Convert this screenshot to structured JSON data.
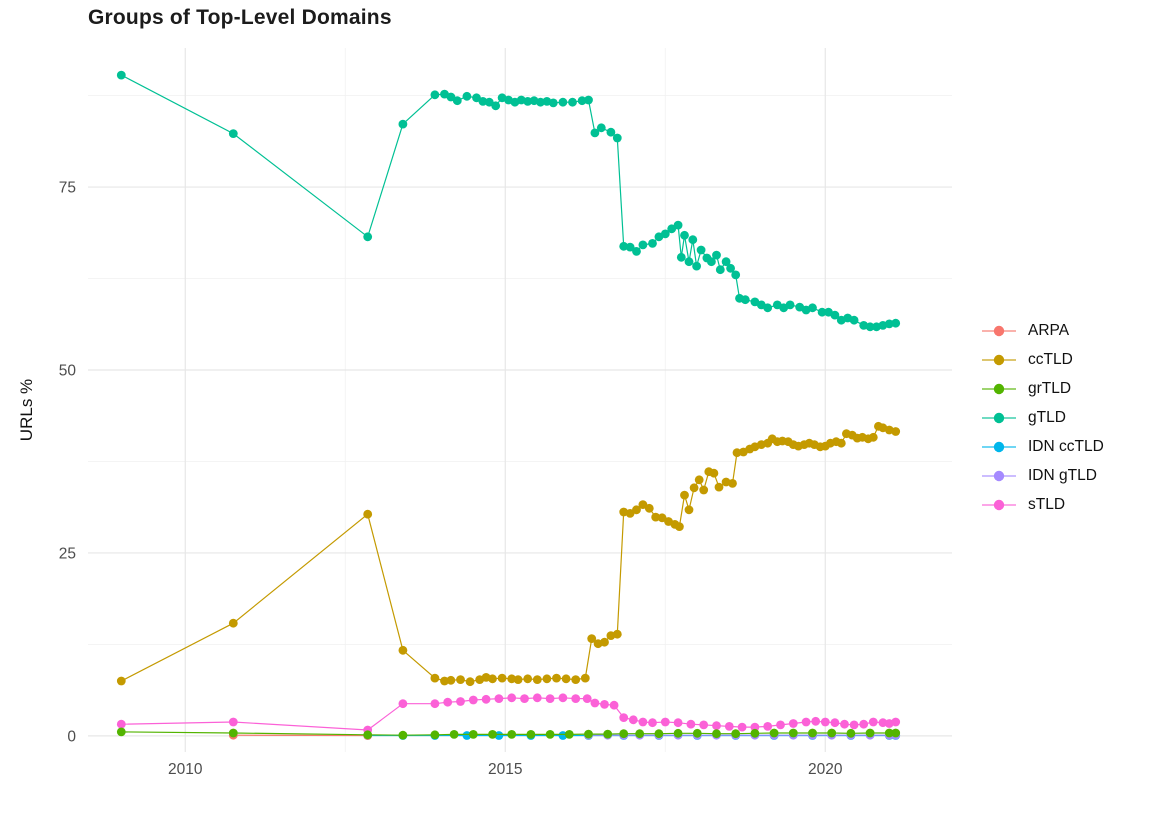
{
  "title": "Groups of Top-Level Domains",
  "chart_data": {
    "type": "line",
    "title": "Groups of Top-Level Domains",
    "xlabel": "",
    "ylabel": "URLs %",
    "x_ticks": [
      2010,
      2015,
      2020
    ],
    "x_tick_labels": [
      "2010",
      "2015",
      "2020"
    ],
    "x_minor": [
      2012.5,
      2017.5
    ],
    "y_ticks": [
      0,
      25,
      50,
      75
    ],
    "y_tick_labels": [
      "0",
      "25",
      "50",
      "75"
    ],
    "y_minor": [
      12.5,
      37.5,
      62.5,
      87.5
    ],
    "xlim": [
      2008.48,
      2021.98
    ],
    "ylim": [
      -2.2,
      94.0
    ],
    "grid": true,
    "legend_position": "right",
    "draw_order": [
      "IDN ccTLD",
      "IDN gTLD",
      "ARPA",
      "sTLD",
      "ccTLD",
      "gTLD",
      "grTLD"
    ],
    "series": [
      {
        "name": "ARPA",
        "color": "#F8766D",
        "points": [
          [
            2010.75,
            0.1
          ],
          [
            2012.85,
            0.05
          ]
        ]
      },
      {
        "name": "ccTLD",
        "color": "#C49A00",
        "points": [
          [
            2009.0,
            7.5
          ],
          [
            2010.75,
            15.4
          ],
          [
            2012.85,
            30.3
          ],
          [
            2013.4,
            11.7
          ],
          [
            2013.9,
            7.9
          ],
          [
            2014.05,
            7.5
          ],
          [
            2014.15,
            7.6
          ],
          [
            2014.3,
            7.7
          ],
          [
            2014.45,
            7.4
          ],
          [
            2014.6,
            7.7
          ],
          [
            2014.7,
            8.0
          ],
          [
            2014.8,
            7.8
          ],
          [
            2014.95,
            7.9
          ],
          [
            2015.1,
            7.8
          ],
          [
            2015.2,
            7.7
          ],
          [
            2015.35,
            7.8
          ],
          [
            2015.5,
            7.7
          ],
          [
            2015.65,
            7.8
          ],
          [
            2015.8,
            7.9
          ],
          [
            2015.95,
            7.8
          ],
          [
            2016.1,
            7.7
          ],
          [
            2016.25,
            7.9
          ],
          [
            2016.35,
            13.3
          ],
          [
            2016.45,
            12.6
          ],
          [
            2016.55,
            12.8
          ],
          [
            2016.65,
            13.7
          ],
          [
            2016.75,
            13.9
          ],
          [
            2016.85,
            30.6
          ],
          [
            2016.95,
            30.4
          ],
          [
            2017.05,
            30.9
          ],
          [
            2017.15,
            31.6
          ],
          [
            2017.25,
            31.1
          ],
          [
            2017.35,
            29.9
          ],
          [
            2017.45,
            29.8
          ],
          [
            2017.55,
            29.3
          ],
          [
            2017.65,
            28.9
          ],
          [
            2017.72,
            28.6
          ],
          [
            2017.8,
            32.9
          ],
          [
            2017.87,
            30.9
          ],
          [
            2017.95,
            33.9
          ],
          [
            2018.03,
            35.0
          ],
          [
            2018.1,
            33.6
          ],
          [
            2018.18,
            36.1
          ],
          [
            2018.26,
            35.9
          ],
          [
            2018.34,
            34.0
          ],
          [
            2018.45,
            34.7
          ],
          [
            2018.55,
            34.5
          ],
          [
            2018.62,
            38.7
          ],
          [
            2018.72,
            38.8
          ],
          [
            2018.82,
            39.2
          ],
          [
            2018.9,
            39.5
          ],
          [
            2019.0,
            39.8
          ],
          [
            2019.1,
            40.0
          ],
          [
            2019.17,
            40.6
          ],
          [
            2019.25,
            40.2
          ],
          [
            2019.33,
            40.3
          ],
          [
            2019.42,
            40.2
          ],
          [
            2019.5,
            39.8
          ],
          [
            2019.58,
            39.6
          ],
          [
            2019.67,
            39.8
          ],
          [
            2019.75,
            40.0
          ],
          [
            2019.83,
            39.8
          ],
          [
            2019.92,
            39.5
          ],
          [
            2020.0,
            39.6
          ],
          [
            2020.08,
            40.0
          ],
          [
            2020.17,
            40.2
          ],
          [
            2020.25,
            40.0
          ],
          [
            2020.33,
            41.3
          ],
          [
            2020.42,
            41.1
          ],
          [
            2020.5,
            40.7
          ],
          [
            2020.58,
            40.8
          ],
          [
            2020.67,
            40.6
          ],
          [
            2020.75,
            40.8
          ],
          [
            2020.83,
            42.3
          ],
          [
            2020.9,
            42.1
          ],
          [
            2021.0,
            41.8
          ],
          [
            2021.1,
            41.6
          ]
        ]
      },
      {
        "name": "grTLD",
        "color": "#53B400",
        "points": [
          [
            2009.0,
            0.55
          ],
          [
            2010.75,
            0.4
          ],
          [
            2012.85,
            0.15
          ],
          [
            2013.4,
            0.1
          ],
          [
            2013.9,
            0.15
          ],
          [
            2014.2,
            0.2
          ],
          [
            2014.5,
            0.2
          ],
          [
            2014.8,
            0.2
          ],
          [
            2015.1,
            0.2
          ],
          [
            2015.4,
            0.2
          ],
          [
            2015.7,
            0.2
          ],
          [
            2016.0,
            0.2
          ],
          [
            2016.3,
            0.25
          ],
          [
            2016.6,
            0.25
          ],
          [
            2016.85,
            0.3
          ],
          [
            2017.1,
            0.3
          ],
          [
            2017.4,
            0.3
          ],
          [
            2017.7,
            0.35
          ],
          [
            2018.0,
            0.35
          ],
          [
            2018.3,
            0.3
          ],
          [
            2018.6,
            0.3
          ],
          [
            2018.9,
            0.35
          ],
          [
            2019.2,
            0.4
          ],
          [
            2019.5,
            0.4
          ],
          [
            2019.8,
            0.4
          ],
          [
            2020.1,
            0.4
          ],
          [
            2020.4,
            0.35
          ],
          [
            2020.7,
            0.4
          ],
          [
            2021.0,
            0.4
          ],
          [
            2021.1,
            0.4
          ]
        ]
      },
      {
        "name": "gTLD",
        "color": "#00C094",
        "points": [
          [
            2009.0,
            90.3
          ],
          [
            2010.75,
            82.3
          ],
          [
            2012.85,
            68.2
          ],
          [
            2013.4,
            83.6
          ],
          [
            2013.9,
            87.6
          ],
          [
            2014.05,
            87.7
          ],
          [
            2014.15,
            87.3
          ],
          [
            2014.25,
            86.8
          ],
          [
            2014.4,
            87.4
          ],
          [
            2014.55,
            87.2
          ],
          [
            2014.65,
            86.7
          ],
          [
            2014.75,
            86.6
          ],
          [
            2014.85,
            86.1
          ],
          [
            2014.95,
            87.2
          ],
          [
            2015.05,
            86.9
          ],
          [
            2015.15,
            86.6
          ],
          [
            2015.25,
            86.9
          ],
          [
            2015.35,
            86.7
          ],
          [
            2015.45,
            86.8
          ],
          [
            2015.55,
            86.6
          ],
          [
            2015.65,
            86.7
          ],
          [
            2015.75,
            86.5
          ],
          [
            2015.9,
            86.6
          ],
          [
            2016.05,
            86.6
          ],
          [
            2016.2,
            86.8
          ],
          [
            2016.3,
            86.9
          ],
          [
            2016.4,
            82.4
          ],
          [
            2016.5,
            83.1
          ],
          [
            2016.65,
            82.5
          ],
          [
            2016.75,
            81.7
          ],
          [
            2016.85,
            66.9
          ],
          [
            2016.95,
            66.8
          ],
          [
            2017.05,
            66.2
          ],
          [
            2017.15,
            67.1
          ],
          [
            2017.3,
            67.3
          ],
          [
            2017.4,
            68.2
          ],
          [
            2017.5,
            68.6
          ],
          [
            2017.6,
            69.3
          ],
          [
            2017.7,
            69.8
          ],
          [
            2017.75,
            65.4
          ],
          [
            2017.8,
            68.4
          ],
          [
            2017.87,
            64.8
          ],
          [
            2017.93,
            67.8
          ],
          [
            2017.99,
            64.2
          ],
          [
            2018.06,
            66.4
          ],
          [
            2018.15,
            65.3
          ],
          [
            2018.22,
            64.8
          ],
          [
            2018.3,
            65.7
          ],
          [
            2018.36,
            63.7
          ],
          [
            2018.45,
            64.8
          ],
          [
            2018.52,
            63.9
          ],
          [
            2018.6,
            63.0
          ],
          [
            2018.66,
            59.8
          ],
          [
            2018.75,
            59.6
          ],
          [
            2018.9,
            59.3
          ],
          [
            2019.0,
            58.9
          ],
          [
            2019.1,
            58.5
          ],
          [
            2019.25,
            58.9
          ],
          [
            2019.35,
            58.5
          ],
          [
            2019.45,
            58.9
          ],
          [
            2019.6,
            58.6
          ],
          [
            2019.7,
            58.2
          ],
          [
            2019.8,
            58.5
          ],
          [
            2019.95,
            57.9
          ],
          [
            2020.05,
            57.9
          ],
          [
            2020.15,
            57.5
          ],
          [
            2020.25,
            56.8
          ],
          [
            2020.35,
            57.1
          ],
          [
            2020.45,
            56.8
          ],
          [
            2020.6,
            56.1
          ],
          [
            2020.7,
            55.9
          ],
          [
            2020.8,
            55.9
          ],
          [
            2020.9,
            56.1
          ],
          [
            2021.0,
            56.3
          ],
          [
            2021.1,
            56.4
          ]
        ]
      },
      {
        "name": "IDN ccTLD",
        "color": "#00B6EB",
        "points": [
          [
            2012.85,
            0.05
          ],
          [
            2013.4,
            0.05
          ],
          [
            2013.9,
            0.05
          ],
          [
            2014.4,
            0.05
          ],
          [
            2014.9,
            0.05
          ],
          [
            2015.4,
            0.05
          ],
          [
            2015.9,
            0.05
          ],
          [
            2016.3,
            0.05
          ],
          [
            2016.85,
            0.05
          ],
          [
            2017.4,
            0.05
          ],
          [
            2018.0,
            0.05
          ],
          [
            2018.6,
            0.05
          ],
          [
            2019.2,
            0.05
          ],
          [
            2019.8,
            0.05
          ],
          [
            2020.4,
            0.05
          ],
          [
            2021.0,
            0.05
          ],
          [
            2021.1,
            0.05
          ]
        ]
      },
      {
        "name": "IDN gTLD",
        "color": "#A58AFF",
        "points": [
          [
            2016.3,
            0.1
          ],
          [
            2016.6,
            0.1
          ],
          [
            2016.85,
            0.1
          ],
          [
            2017.1,
            0.1
          ],
          [
            2017.4,
            0.1
          ],
          [
            2017.7,
            0.1
          ],
          [
            2018.0,
            0.1
          ],
          [
            2018.3,
            0.1
          ],
          [
            2018.6,
            0.1
          ],
          [
            2018.9,
            0.1
          ],
          [
            2019.2,
            0.1
          ],
          [
            2019.5,
            0.1
          ],
          [
            2019.8,
            0.1
          ],
          [
            2020.1,
            0.1
          ],
          [
            2020.4,
            0.1
          ],
          [
            2020.7,
            0.1
          ],
          [
            2021.0,
            0.1
          ],
          [
            2021.1,
            0.1
          ]
        ]
      },
      {
        "name": "sTLD",
        "color": "#FB61D7",
        "points": [
          [
            2009.0,
            1.6
          ],
          [
            2010.75,
            1.9
          ],
          [
            2012.85,
            0.8
          ],
          [
            2013.4,
            4.4
          ],
          [
            2013.9,
            4.4
          ],
          [
            2014.1,
            4.6
          ],
          [
            2014.3,
            4.7
          ],
          [
            2014.5,
            4.9
          ],
          [
            2014.7,
            5.0
          ],
          [
            2014.9,
            5.1
          ],
          [
            2015.1,
            5.2
          ],
          [
            2015.3,
            5.1
          ],
          [
            2015.5,
            5.2
          ],
          [
            2015.7,
            5.1
          ],
          [
            2015.9,
            5.2
          ],
          [
            2016.1,
            5.1
          ],
          [
            2016.28,
            5.1
          ],
          [
            2016.4,
            4.5
          ],
          [
            2016.55,
            4.3
          ],
          [
            2016.7,
            4.2
          ],
          [
            2016.85,
            2.5
          ],
          [
            2017.0,
            2.2
          ],
          [
            2017.15,
            1.9
          ],
          [
            2017.3,
            1.8
          ],
          [
            2017.5,
            1.9
          ],
          [
            2017.7,
            1.8
          ],
          [
            2017.9,
            1.6
          ],
          [
            2018.1,
            1.5
          ],
          [
            2018.3,
            1.4
          ],
          [
            2018.5,
            1.3
          ],
          [
            2018.7,
            1.2
          ],
          [
            2018.9,
            1.2
          ],
          [
            2019.1,
            1.3
          ],
          [
            2019.3,
            1.5
          ],
          [
            2019.5,
            1.7
          ],
          [
            2019.7,
            1.9
          ],
          [
            2019.85,
            2.0
          ],
          [
            2020.0,
            1.9
          ],
          [
            2020.15,
            1.8
          ],
          [
            2020.3,
            1.6
          ],
          [
            2020.45,
            1.5
          ],
          [
            2020.6,
            1.6
          ],
          [
            2020.75,
            1.9
          ],
          [
            2020.9,
            1.8
          ],
          [
            2021.0,
            1.7
          ],
          [
            2021.1,
            1.9
          ]
        ]
      }
    ],
    "colors": {
      "ARPA": "#F8766D",
      "ccTLD": "#C49A00",
      "grTLD": "#53B400",
      "gTLD": "#00C094",
      "IDN ccTLD": "#00B6EB",
      "IDN gTLD": "#A58AFF",
      "sTLD": "#FB61D7"
    },
    "grid_major_color": "#e7e7e7",
    "grid_minor_color": "#f2f2f2",
    "tick_label_color": "#4d4d4d"
  },
  "legend": {
    "entries": [
      "ARPA",
      "ccTLD",
      "grTLD",
      "gTLD",
      "IDN ccTLD",
      "IDN gTLD",
      "sTLD"
    ]
  }
}
